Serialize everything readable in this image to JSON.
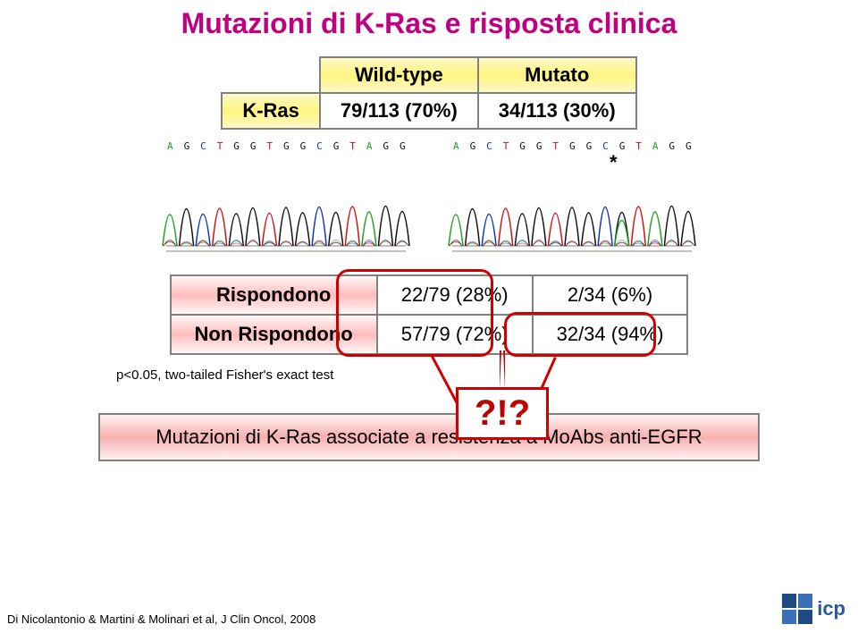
{
  "title": {
    "text": "Mutazioni di K-Ras e risposta clinica",
    "color": "#c00080"
  },
  "table1": {
    "header_wild": "Wild-type",
    "header_mut": "Mutato",
    "row_label": "K-Ras",
    "cell_wild": "79/113 (70%)",
    "cell_mut": "34/113 (30%)"
  },
  "chromatogram": {
    "sequence": "A G C T G G T G G C G T A G G",
    "colors": {
      "A": "#1fa01f",
      "C": "#1030d0",
      "G": "#101010",
      "T": "#d01010"
    },
    "mutation_mark": "*"
  },
  "table2": {
    "row1_label": "Rispondono",
    "row1_wild": "22/79 (28%)",
    "row1_mut": "2/34 (6%)",
    "row2_label": "Non Rispondono",
    "row2_wild": "57/79 (72%)",
    "row2_mut": "32/34 (94%)"
  },
  "pvalue": "p<0.05, two-tailed Fisher's exact test",
  "exclaim": "?!?",
  "conclusion": "Mutazioni di K-Ras associate a resistenza a MoAbs anti-EGFR",
  "citation": "Di Nicolantonio & Martini & Molinari et al, J Clin Oncol, 2008",
  "logo_text": "icp"
}
